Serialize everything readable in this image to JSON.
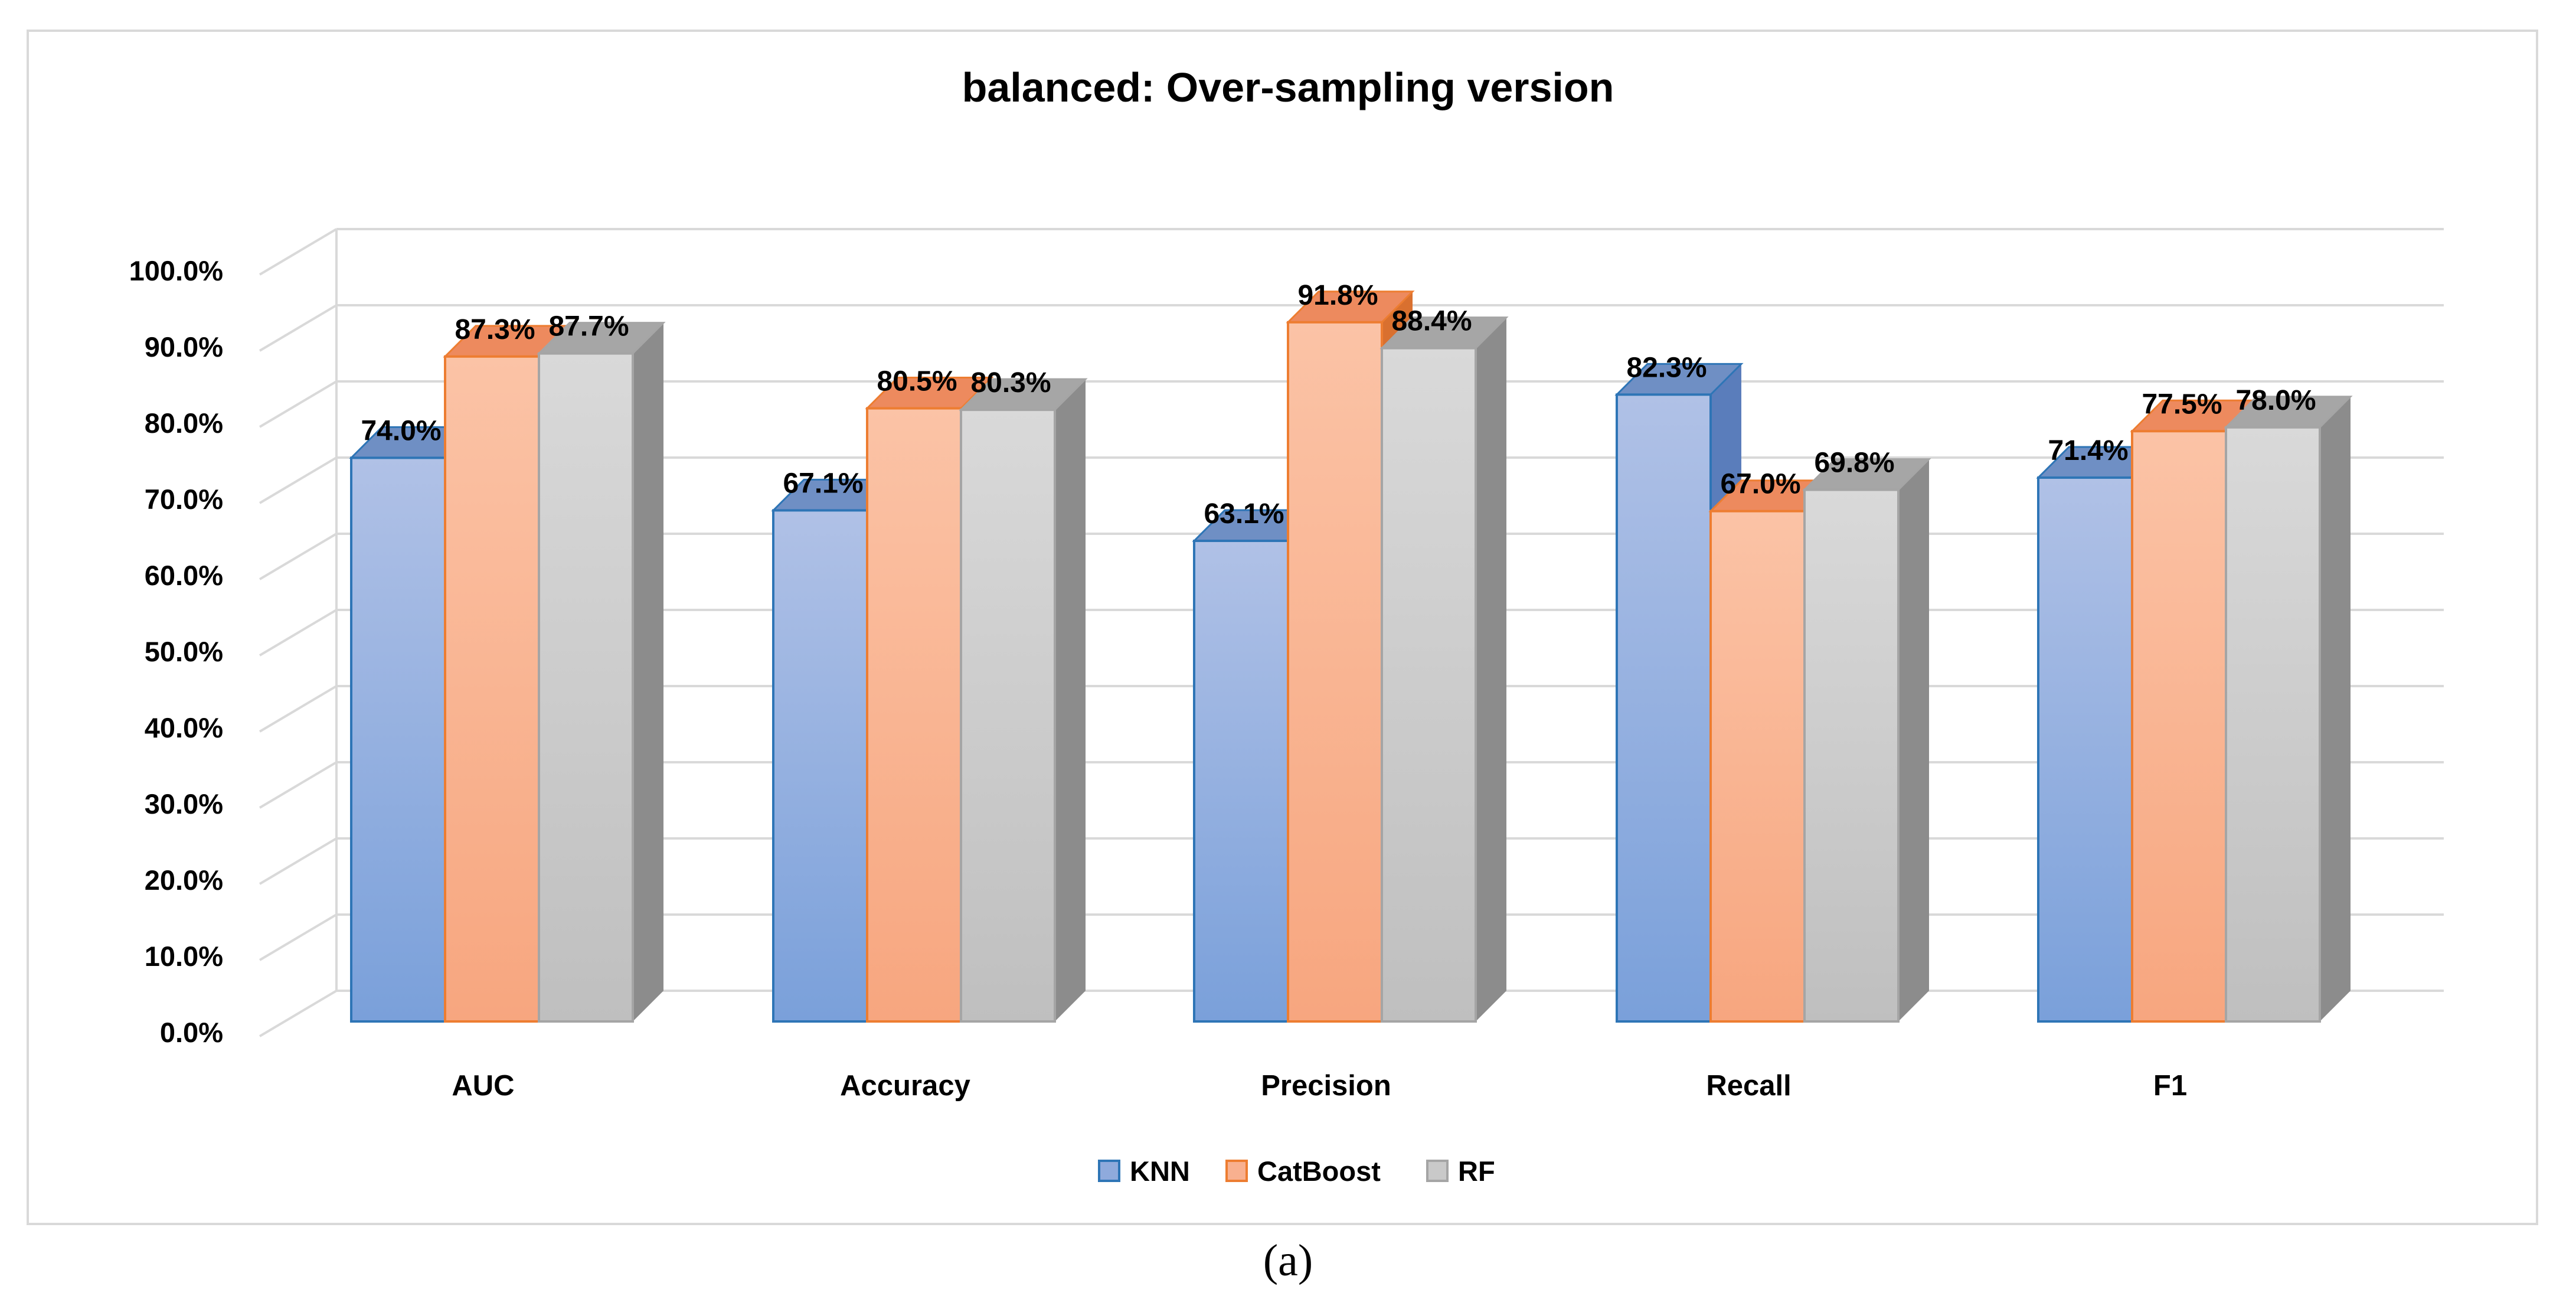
{
  "chart_data": {
    "type": "bar",
    "style": "3d-clustered-column",
    "title": "balanced: Over-sampling version",
    "xlabel": "",
    "ylabel": "",
    "ylim": [
      0,
      100
    ],
    "y_ticks": [
      "0.0%",
      "10.0%",
      "20.0%",
      "30.0%",
      "40.0%",
      "50.0%",
      "60.0%",
      "70.0%",
      "80.0%",
      "90.0%",
      "100.0%"
    ],
    "categories": [
      "AUC",
      "Accuracy",
      "Precision",
      "Recall",
      "F1"
    ],
    "series": [
      {
        "name": "KNN",
        "values": [
          74.0,
          67.1,
          63.1,
          82.3,
          71.4
        ],
        "labels": [
          "74.0%",
          "67.1%",
          "63.1%",
          "82.3%",
          "71.4%"
        ],
        "color": "#8faadc",
        "edge": "#2e75b6"
      },
      {
        "name": "CatBoost",
        "values": [
          87.3,
          80.5,
          91.8,
          67.0,
          77.5
        ],
        "labels": [
          "87.3%",
          "80.5%",
          "91.8%",
          "67.0%",
          "77.5%"
        ],
        "color": "#f8b08f",
        "edge": "#ed7d31"
      },
      {
        "name": "RF",
        "values": [
          87.7,
          80.3,
          88.4,
          69.8,
          78.0
        ],
        "labels": [
          "87.7%",
          "80.3%",
          "88.4%",
          "69.8%",
          "78.0%"
        ],
        "color": "#c9c9c9",
        "edge": "#a5a5a5"
      }
    ],
    "legend_position": "bottom",
    "grid": true
  },
  "caption": "(a)"
}
